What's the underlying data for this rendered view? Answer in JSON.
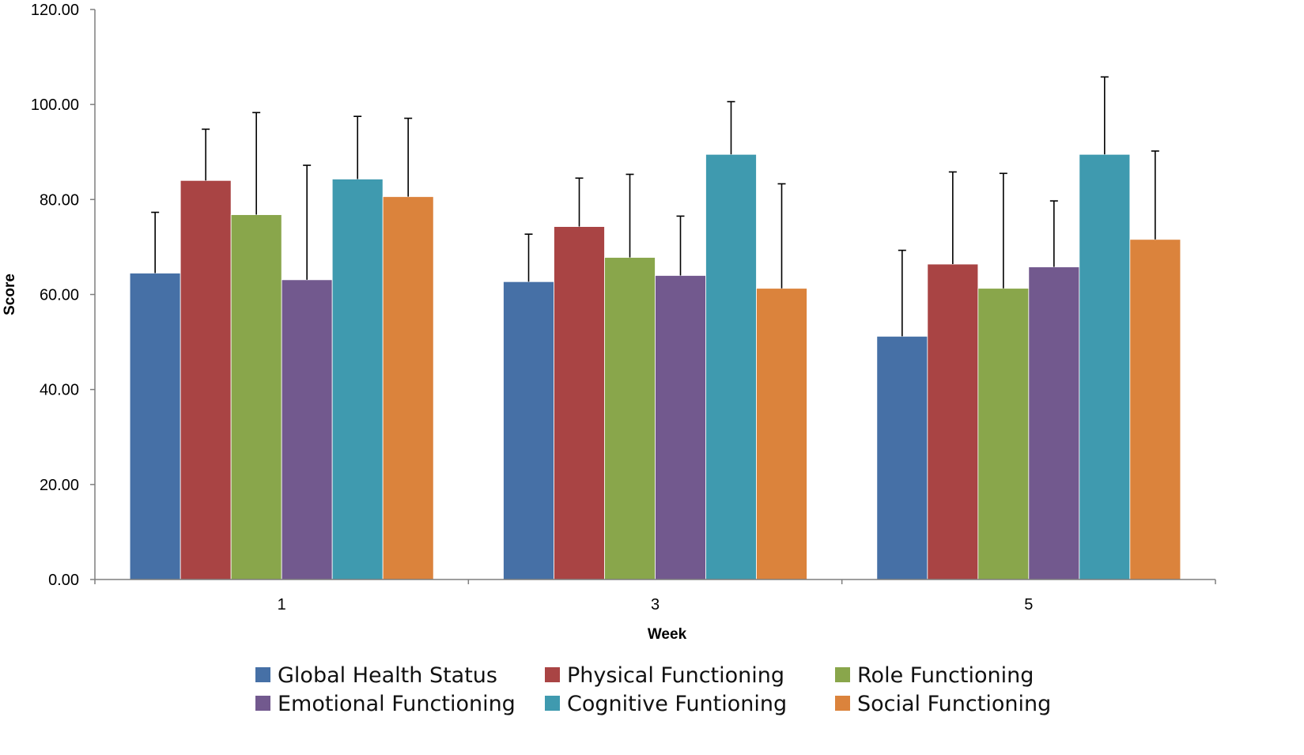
{
  "chart_data": {
    "type": "bar",
    "categories": [
      "1",
      "3",
      "5"
    ],
    "xlabel": "Week",
    "ylabel": "Score",
    "ylim": [
      0,
      120
    ],
    "yticks": [
      "0.00",
      "20.00",
      "40.00",
      "60.00",
      "80.00",
      "100.00",
      "120.00"
    ],
    "grid": false,
    "legend_position": "bottom",
    "error_bars": "upper",
    "series": [
      {
        "name": "Global Health Status",
        "color": "#4670A6",
        "values": [
          64.5,
          62.7,
          51.2
        ],
        "error": [
          12.8,
          10.0,
          18.1
        ]
      },
      {
        "name": "Physical Functioning",
        "color": "#A94444",
        "values": [
          84.0,
          74.3,
          66.4
        ],
        "error": [
          10.8,
          10.2,
          19.4
        ]
      },
      {
        "name": "Role Functioning",
        "color": "#89A64B",
        "values": [
          76.8,
          67.8,
          61.3
        ],
        "error": [
          21.5,
          17.5,
          24.2
        ]
      },
      {
        "name": "Emotional Functioning",
        "color": "#72598E",
        "values": [
          63.1,
          64.0,
          65.8
        ],
        "error": [
          24.1,
          12.5,
          13.9
        ]
      },
      {
        "name": "Cognitive Funtioning",
        "color": "#3F9AAF",
        "values": [
          84.3,
          89.5,
          89.5
        ],
        "error": [
          13.2,
          11.1,
          16.3
        ]
      },
      {
        "name": "Social Functioning",
        "color": "#DB833C",
        "values": [
          80.6,
          61.3,
          71.6
        ],
        "error": [
          16.5,
          22.0,
          18.6
        ]
      }
    ]
  }
}
